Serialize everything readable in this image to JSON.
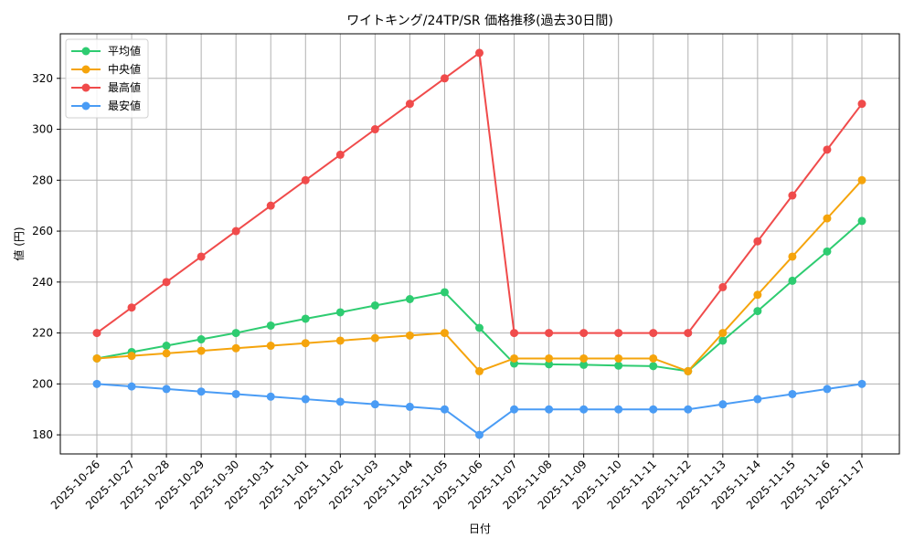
{
  "chart_data": {
    "type": "line",
    "title": "ワイトキング/24TP/SR 価格推移(過去30日間)",
    "xlabel": "日付",
    "ylabel": "値 (円)",
    "ylim": [
      172.5,
      337.5
    ],
    "yticks": [
      180,
      200,
      220,
      240,
      260,
      280,
      300,
      320
    ],
    "grid": true,
    "legend_position": "upper left",
    "categories": [
      "2025-10-26",
      "2025-10-27",
      "2025-10-28",
      "2025-10-29",
      "2025-10-30",
      "2025-10-31",
      "2025-11-01",
      "2025-11-02",
      "2025-11-03",
      "2025-11-04",
      "2025-11-05",
      "2025-11-06",
      "2025-11-07",
      "2025-11-08",
      "2025-11-09",
      "2025-11-10",
      "2025-11-11",
      "2025-11-12",
      "2025-11-13",
      "2025-11-14",
      "2025-11-15",
      "2025-11-16",
      "2025-11-17"
    ],
    "series": [
      {
        "name": "平均値",
        "color": "#2ecc71",
        "values": [
          210,
          212.5,
          215,
          217.5,
          220,
          222.9,
          225.6,
          228.1,
          230.8,
          233.3,
          236,
          222,
          208,
          207.7,
          207.5,
          207.2,
          207,
          205,
          217,
          228.6,
          240.5,
          252,
          264
        ]
      },
      {
        "name": "中央値",
        "color": "#f5a40c",
        "values": [
          210,
          211,
          212,
          213,
          214,
          215,
          216,
          217,
          218,
          219,
          220,
          205,
          210,
          210,
          210,
          210,
          210,
          205,
          220,
          235,
          250,
          265,
          280
        ]
      },
      {
        "name": "最高値",
        "color": "#f04b4b",
        "values": [
          220,
          230,
          240,
          250,
          260,
          270,
          280,
          290,
          300,
          310,
          320,
          330,
          220,
          220,
          220,
          220,
          220,
          220,
          238,
          256,
          274,
          292,
          310
        ]
      },
      {
        "name": "最安値",
        "color": "#4a9cf5",
        "values": [
          200,
          199,
          198,
          197,
          196,
          195,
          194,
          193,
          192,
          191,
          190,
          180,
          190,
          190,
          190,
          190,
          190,
          190,
          192,
          194,
          196,
          198,
          200
        ]
      }
    ]
  }
}
